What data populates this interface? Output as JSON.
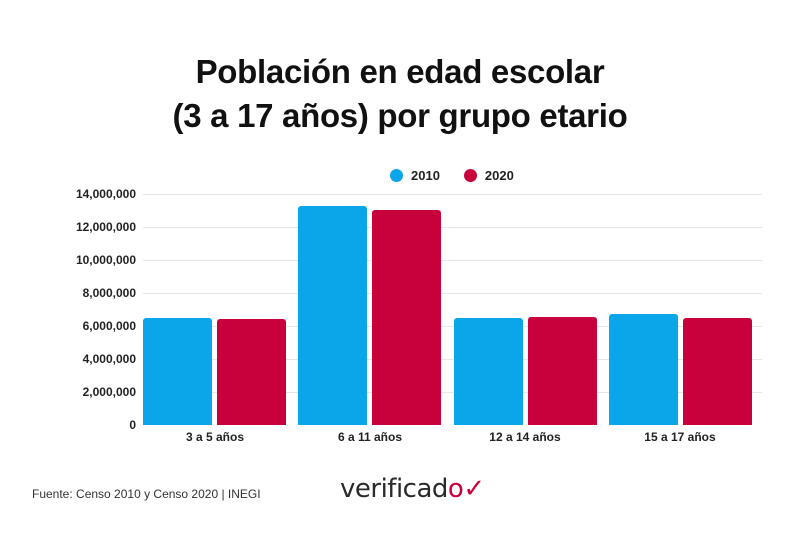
{
  "title_line1": "Población en edad escolar",
  "title_line2": "(3 a 17 años) por grupo etario",
  "legend": [
    {
      "label": "2010",
      "color": "#0ba5e9"
    },
    {
      "label": "2020",
      "color": "#c8003c"
    }
  ],
  "y_ticks": [
    "14,000,000",
    "12,000,000",
    "10,000,000",
    "8,000,000",
    "6,000,000",
    "4,000,000",
    "2,000,000",
    "0"
  ],
  "categories": [
    "3 a 5 años",
    "6 a 11 años",
    "12 a 14 años",
    "15 a 17 años"
  ],
  "source": "Fuente: Censo 2010 y Censo 2020 | INEGI",
  "logo": {
    "text": "verificad",
    "mark": "o✓"
  },
  "chart_data": {
    "type": "bar",
    "title": "Población en edad escolar (3 a 17 años) por grupo etario",
    "xlabel": "",
    "ylabel": "",
    "categories": [
      "3 a 5 años",
      "6 a 11 años",
      "12 a 14 años",
      "15 a 17 años"
    ],
    "series": [
      {
        "name": "2010",
        "color": "#0ba5e9",
        "values": [
          6500000,
          13300000,
          6500000,
          6700000
        ]
      },
      {
        "name": "2020",
        "color": "#c8003c",
        "values": [
          6400000,
          13000000,
          6550000,
          6500000
        ]
      }
    ],
    "ylim": [
      0,
      14000000
    ],
    "y_ticks": [
      0,
      2000000,
      4000000,
      6000000,
      8000000,
      10000000,
      12000000,
      14000000
    ],
    "grid": true,
    "legend_position": "top"
  }
}
